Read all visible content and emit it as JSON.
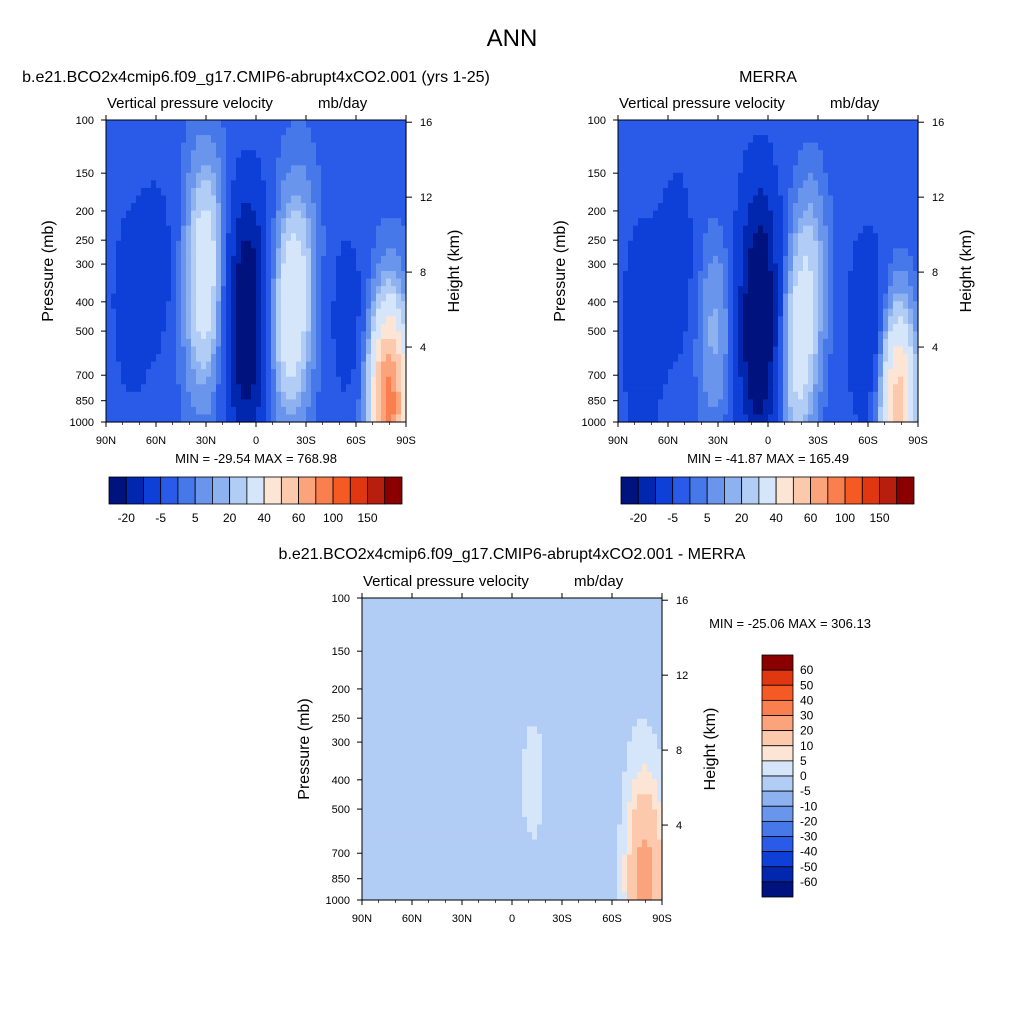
{
  "figure": {
    "title": "ANN",
    "colors": {
      "warm": [
        "#fde5d6",
        "#fcc9ac",
        "#fba47c",
        "#f97f4f",
        "#f55a25",
        "#e03711",
        "#b81e0e",
        "#8a0000"
      ],
      "cool": [
        "#d5e5fa",
        "#b2cdf5",
        "#8eb2f0",
        "#6a95ec",
        "#4778ea",
        "#2a5ae8",
        "#0e3fd7",
        "#0027ad",
        "#00127d"
      ]
    }
  },
  "chart_data": [
    {
      "type": "heatmap",
      "title": "b.e21.BCO2x4cmip6.f09_g17.CMIP6-abrupt4xCO2.001 (yrs 1-25)",
      "left_string": "Vertical pressure velocity",
      "right_string": "mb/day",
      "xlabel": "",
      "ylabel": "Pressure (mb)",
      "y2label": "Height (km)",
      "x_ticks": [
        "90N",
        "60N",
        "30N",
        "0",
        "30S",
        "60S",
        "90S"
      ],
      "x_values": [
        90,
        60,
        30,
        0,
        -30,
        -60,
        -90
      ],
      "y_ticks": [
        "100",
        "150",
        "200",
        "250",
        "300",
        "400",
        "500",
        "700",
        "850",
        "1000"
      ],
      "y_values": [
        100,
        150,
        200,
        250,
        300,
        400,
        500,
        700,
        850,
        1000
      ],
      "y2_ticks": [
        "16",
        "12",
        "8",
        "4"
      ],
      "y2_values": [
        16,
        12,
        8,
        4
      ],
      "ylim": [
        1000,
        100
      ],
      "xlim": [
        90,
        -90
      ],
      "stats": "MIN = -29.54  MAX = 768.98",
      "colorbar_labels": [
        "-20",
        "-5",
        "5",
        "20",
        "40",
        "60",
        "100",
        "150"
      ],
      "colorbar_levels": [
        -30,
        -20,
        -10,
        -5,
        -2,
        2,
        5,
        10,
        20,
        30,
        40,
        50,
        60,
        80,
        100,
        150
      ],
      "features": [
        {
          "lat": 75,
          "p": 400,
          "value": -10
        },
        {
          "lat": 60,
          "p": 300,
          "value": -8
        },
        {
          "lat": 32,
          "p": 450,
          "value": 12
        },
        {
          "lat": 30,
          "p": 250,
          "value": 15
        },
        {
          "lat": 6,
          "p": 600,
          "value": -28
        },
        {
          "lat": 5,
          "p": 300,
          "value": -20
        },
        {
          "lat": -20,
          "p": 500,
          "value": 18
        },
        {
          "lat": -25,
          "p": 300,
          "value": 12
        },
        {
          "lat": -55,
          "p": 450,
          "value": -8
        },
        {
          "lat": -80,
          "p": 850,
          "value": 60
        }
      ]
    },
    {
      "type": "heatmap",
      "title": "MERRA",
      "left_string": "Vertical pressure velocity",
      "right_string": "mb/day",
      "xlabel": "",
      "ylabel": "Pressure (mb)",
      "y2label": "Height (km)",
      "x_ticks": [
        "90N",
        "60N",
        "30N",
        "0",
        "30S",
        "60S",
        "90S"
      ],
      "x_values": [
        90,
        60,
        30,
        0,
        -30,
        -60,
        -90
      ],
      "y_ticks": [
        "100",
        "150",
        "200",
        "250",
        "300",
        "400",
        "500",
        "700",
        "850",
        "1000"
      ],
      "y_values": [
        100,
        150,
        200,
        250,
        300,
        400,
        500,
        700,
        850,
        1000
      ],
      "y2_ticks": [
        "16",
        "12",
        "8",
        "4"
      ],
      "y2_values": [
        16,
        12,
        8,
        4
      ],
      "ylim": [
        1000,
        100
      ],
      "xlim": [
        90,
        -90
      ],
      "stats": "MIN = -41.87  MAX = 165.49",
      "colorbar_labels": [
        "-20",
        "-5",
        "5",
        "20",
        "40",
        "60",
        "100",
        "150"
      ],
      "colorbar_levels": [
        -30,
        -20,
        -10,
        -5,
        -2,
        2,
        5,
        10,
        20,
        30,
        40,
        50,
        60,
        80,
        100,
        150
      ],
      "features": [
        {
          "lat": 75,
          "p": 500,
          "value": -12
        },
        {
          "lat": 55,
          "p": 300,
          "value": -8
        },
        {
          "lat": 32,
          "p": 500,
          "value": 10
        },
        {
          "lat": 6,
          "p": 600,
          "value": -32
        },
        {
          "lat": 5,
          "p": 300,
          "value": -22
        },
        {
          "lat": -18,
          "p": 600,
          "value": 20
        },
        {
          "lat": -25,
          "p": 300,
          "value": 12
        },
        {
          "lat": -60,
          "p": 500,
          "value": -12
        },
        {
          "lat": -78,
          "p": 850,
          "value": 40
        }
      ]
    },
    {
      "type": "heatmap",
      "title": "b.e21.BCO2x4cmip6.f09_g17.CMIP6-abrupt4xCO2.001 - MERRA",
      "left_string": "Vertical pressure velocity",
      "right_string": "mb/day",
      "xlabel": "",
      "ylabel": "Pressure (mb)",
      "y2label": "Height (km)",
      "x_ticks": [
        "90N",
        "60N",
        "30N",
        "0",
        "30S",
        "60S",
        "90S"
      ],
      "x_values": [
        90,
        60,
        30,
        0,
        -30,
        -60,
        -90
      ],
      "y_ticks": [
        "100",
        "150",
        "200",
        "250",
        "300",
        "400",
        "500",
        "700",
        "850",
        "1000"
      ],
      "y_values": [
        100,
        150,
        200,
        250,
        300,
        400,
        500,
        700,
        850,
        1000
      ],
      "y2_ticks": [
        "16",
        "12",
        "8",
        "4"
      ],
      "y2_values": [
        16,
        12,
        8,
        4
      ],
      "ylim": [
        1000,
        100
      ],
      "xlim": [
        90,
        -90
      ],
      "stats": "MIN = -25.06  MAX = 306.13",
      "colorbar_labels": [
        "60",
        "50",
        "40",
        "30",
        "20",
        "10",
        "5",
        "0",
        "-5",
        "-10",
        "-20",
        "-30",
        "-40",
        "-50",
        "-60"
      ],
      "colorbar_levels": [
        -60,
        -50,
        -40,
        -30,
        -20,
        -10,
        -5,
        0,
        5,
        10,
        20,
        30,
        40,
        50,
        60
      ],
      "features": [
        {
          "lat": 55,
          "p": 400,
          "value": 2
        },
        {
          "lat": 35,
          "p": 400,
          "value": -2
        },
        {
          "lat": 10,
          "p": 400,
          "value": -3
        },
        {
          "lat": -12,
          "p": 400,
          "value": 3
        },
        {
          "lat": -55,
          "p": 400,
          "value": -3
        },
        {
          "lat": -75,
          "p": 500,
          "value": 2
        },
        {
          "lat": -80,
          "p": 850,
          "value": 25
        }
      ]
    }
  ]
}
